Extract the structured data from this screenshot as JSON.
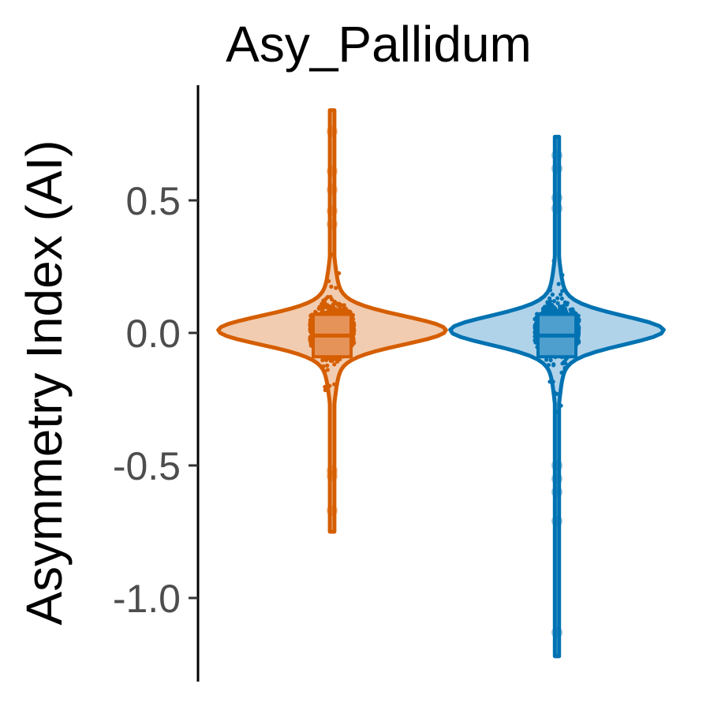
{
  "chart_data": {
    "type": "violin",
    "title": "Asy_Pallidum",
    "xlabel": "",
    "ylabel": "Asymmetry Index (AI)",
    "ylim": [
      -1.25,
      0.9
    ],
    "yticks": [
      "0.5",
      "0.0",
      "-0.5",
      "-1.0"
    ],
    "ytick_values": [
      0.5,
      0.0,
      -0.5,
      -1.0
    ],
    "grid": false,
    "legend": "none",
    "groups": [
      {
        "color": "#D55E00",
        "fill": "#F2CCB0",
        "box_fill": "#E6935A",
        "min": -0.75,
        "max": 0.84,
        "q1": -0.09,
        "median": -0.01,
        "q3": 0.07,
        "outliers": [
          0.76,
          0.61,
          0.54,
          0.46,
          0.41,
          -0.52,
          -0.54,
          -0.67
        ]
      },
      {
        "color": "#0072B2",
        "fill": "#B0D3EA",
        "box_fill": "#4E9FCE",
        "min": -1.22,
        "max": 0.74,
        "q1": -0.09,
        "median": -0.01,
        "q3": 0.07,
        "outliers": [
          0.67,
          0.62,
          0.51,
          0.47,
          -0.5,
          -0.55,
          -0.6,
          -0.71,
          -1.13
        ]
      }
    ]
  }
}
